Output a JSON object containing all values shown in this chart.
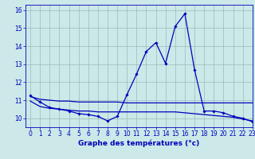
{
  "title": "Graphe des températures (°c)",
  "bg_color": "#cce8e8",
  "plot_bg_color": "#cce8e8",
  "line_color": "#0000bb",
  "grid_color": "#99bbbb",
  "spine_color": "#0000bb",
  "xlim": [
    -0.5,
    23
  ],
  "ylim": [
    9.5,
    16.3
  ],
  "yticks": [
    10,
    11,
    12,
    13,
    14,
    15,
    16
  ],
  "xticks": [
    0,
    1,
    2,
    3,
    4,
    5,
    6,
    7,
    8,
    9,
    10,
    11,
    12,
    13,
    14,
    15,
    16,
    17,
    18,
    19,
    20,
    21,
    22,
    23
  ],
  "series1_x": [
    0,
    1,
    2,
    3,
    4,
    5,
    6,
    7,
    8,
    9,
    10,
    11,
    12,
    13,
    14,
    15,
    16,
    17,
    18,
    19,
    20,
    21,
    22,
    23
  ],
  "series1_y": [
    11.25,
    10.9,
    10.6,
    10.5,
    10.4,
    10.25,
    10.2,
    10.1,
    9.85,
    10.1,
    11.3,
    12.45,
    13.7,
    14.2,
    13.05,
    15.1,
    15.8,
    12.7,
    10.4,
    10.4,
    10.3,
    10.1,
    10.0,
    9.8
  ],
  "series2_x": [
    0,
    1,
    2,
    3,
    4,
    5,
    6,
    7,
    8,
    9,
    10,
    11,
    12,
    13,
    14,
    15,
    16,
    17,
    18,
    19,
    20,
    21,
    22,
    23
  ],
  "series2_y": [
    11.2,
    11.05,
    11.0,
    10.95,
    10.95,
    10.9,
    10.9,
    10.9,
    10.9,
    10.9,
    10.85,
    10.85,
    10.85,
    10.85,
    10.85,
    10.85,
    10.85,
    10.85,
    10.85,
    10.85,
    10.85,
    10.85,
    10.85,
    10.85
  ],
  "series3_x": [
    0,
    1,
    2,
    3,
    4,
    5,
    6,
    7,
    8,
    9,
    10,
    11,
    12,
    13,
    14,
    15,
    16,
    17,
    18,
    19,
    20,
    21,
    22,
    23
  ],
  "series3_y": [
    10.95,
    10.65,
    10.55,
    10.5,
    10.45,
    10.4,
    10.4,
    10.35,
    10.35,
    10.35,
    10.35,
    10.35,
    10.35,
    10.35,
    10.35,
    10.35,
    10.3,
    10.25,
    10.2,
    10.15,
    10.1,
    10.05,
    9.95,
    9.85
  ]
}
